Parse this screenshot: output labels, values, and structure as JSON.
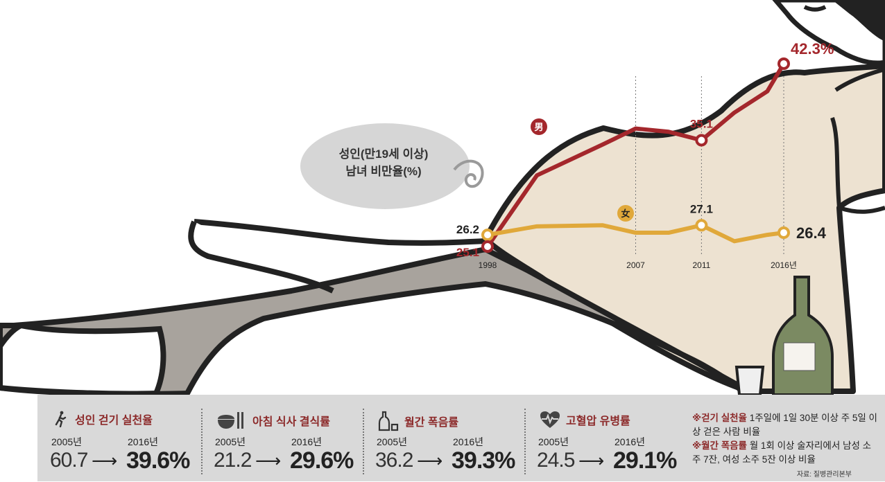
{
  "chart_data": {
    "type": "line",
    "title": "성인(만19세 이상)",
    "subtitle": "남녀 비만율(%)",
    "x": [
      "1998",
      "2007",
      "2011",
      "2016년"
    ],
    "series": [
      {
        "name": "男",
        "color": "#a4272c",
        "points": [
          [
            1998,
            25.1
          ],
          [
            2001,
            31.8
          ],
          [
            2005,
            34.7
          ],
          [
            2007,
            36.2
          ],
          [
            2009,
            35.9
          ],
          [
            2011,
            35.1
          ],
          [
            2013,
            37.7
          ],
          [
            2015,
            39.7
          ],
          [
            2016,
            42.3
          ]
        ],
        "labels": {
          "1998": "25.1",
          "2011": "35.1",
          "2016": "42.3%"
        }
      },
      {
        "name": "女",
        "color": "#e0a83a",
        "points": [
          [
            1998,
            26.2
          ],
          [
            2001,
            27.0
          ],
          [
            2005,
            27.1
          ],
          [
            2007,
            26.4
          ],
          [
            2009,
            26.4
          ],
          [
            2011,
            27.1
          ],
          [
            2013,
            25.6
          ],
          [
            2015,
            26.2
          ],
          [
            2016,
            26.4
          ]
        ],
        "labels": {
          "1998": "26.2",
          "2011": "27.1",
          "2016": "26.4"
        }
      }
    ]
  },
  "bubble": {
    "line1": "성인(만19세 이상)",
    "line2": "남녀 비만율(%)"
  },
  "stats": [
    {
      "icon": "walking-person-icon",
      "title": "성인 걷기 실천율",
      "year1": "2005년",
      "year2": "2016년",
      "v1": "60.7",
      "arrow": "⟶",
      "v2": "39.6%"
    },
    {
      "icon": "rice-bowl-utensils-icon",
      "title": "아침 식사 결식률",
      "year1": "2005년",
      "year2": "2016년",
      "v1": "21.2",
      "arrow": "⟶",
      "v2": "29.6%"
    },
    {
      "icon": "bottle-glass-icon",
      "title": "월간 폭음률",
      "year1": "2005년",
      "year2": "2016년",
      "v1": "36.2",
      "arrow": "⟶",
      "v2": "39.3%"
    },
    {
      "icon": "heart-pulse-icon",
      "title": "고혈압 유병률",
      "year1": "2005년",
      "year2": "2016년",
      "v1": "24.5",
      "arrow": "⟶",
      "v2": "29.1%"
    }
  ],
  "notes": {
    "kw1": "※걷기 실천율",
    "t1": " 1주일에 1일 30분 이상 주 5일 이상 걷은 사람 비율",
    "kw2": "※월간 폭음률",
    "t2": " 월 1회 이상 술자리에서 남성 소주 7잔, 여성 소주 5잔 이상 비율",
    "source": "자료: 질병관리본부"
  }
}
